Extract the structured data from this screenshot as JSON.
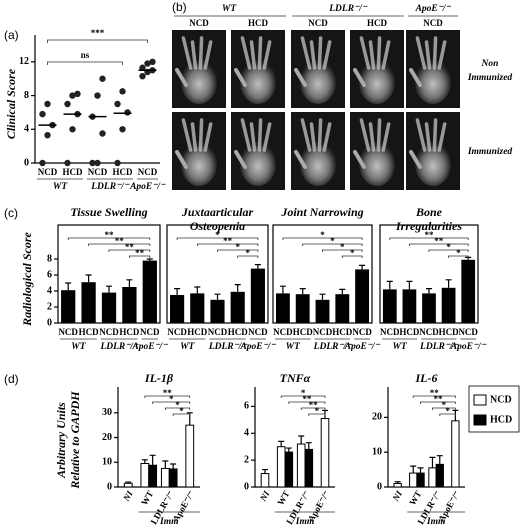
{
  "panel_b": {
    "label": "(b)",
    "genotypes": [
      "WT",
      "LDLR⁻/⁻",
      "ApoE⁻/⁻"
    ],
    "diets": [
      "NCD",
      "HCD",
      "NCD",
      "HCD",
      "NCD"
    ],
    "rows": [
      [
        "Non",
        "Immunized"
      ],
      [
        "Immunized"
      ]
    ]
  },
  "chart_data": [
    {
      "type": "scatter",
      "panel": "(a)",
      "ylabel": "Clinical Score",
      "categories": [
        "NCD",
        "HCD",
        "NCD",
        "HCD",
        "NCD"
      ],
      "groups": [
        "WT",
        "LDLR⁻/⁻",
        "ApoE⁻/⁻"
      ],
      "values": [
        [
          0,
          3.3,
          4.5,
          5.8,
          7
        ],
        [
          0,
          4,
          5.8,
          7,
          8,
          8.2
        ],
        [
          0,
          0,
          3.5,
          5.5,
          8,
          10
        ],
        [
          0,
          4,
          6,
          7,
          8.5
        ],
        [
          10.3,
          10.8,
          11,
          11.3,
          11.8,
          12
        ]
      ],
      "means": [
        4.5,
        5.8,
        5.5,
        5.9,
        11
      ],
      "color": "#222",
      "ylim": [
        0,
        14
      ],
      "yticks": [
        0,
        4,
        8,
        12
      ],
      "annotations": [
        "***",
        "ns"
      ]
    },
    {
      "type": "bar",
      "panel": "(c)",
      "title": [
        "Tissue Swelling"
      ],
      "ylabel": "Radiological Score",
      "categories": [
        "NCD",
        "HCD",
        "NCD",
        "HCD",
        "NCD"
      ],
      "groups": [
        "WT",
        "LDLR⁻/⁻",
        "ApoE⁻/⁻"
      ],
      "values": [
        4.1,
        5.1,
        3.8,
        4.5,
        7.8
      ],
      "errors": [
        0.9,
        0.9,
        0.8,
        0.9,
        0.2
      ],
      "color": "#000",
      "ylim": [
        0,
        11
      ],
      "yticks": [
        0,
        2,
        4,
        6,
        8
      ],
      "annotations": [
        "**",
        "**",
        "**",
        "**"
      ]
    },
    {
      "type": "bar",
      "title": [
        "Juxtaarticular",
        "Osteopenia"
      ],
      "categories": [
        "NCD",
        "HCD",
        "NCD",
        "HCD",
        "NCD"
      ],
      "groups": [
        "WT",
        "LDLR⁻/⁻",
        "ApoE⁻/⁻"
      ],
      "values": [
        3.5,
        3.7,
        2.9,
        3.9,
        6.8
      ],
      "errors": [
        0.8,
        0.8,
        0.7,
        0.9,
        0.5
      ],
      "color": "#000",
      "ylim": [
        0,
        11
      ],
      "annotations": [
        "*",
        "**",
        "*",
        "*"
      ]
    },
    {
      "type": "bar",
      "title": [
        "Joint Narrowing"
      ],
      "categories": [
        "NCD",
        "HCD",
        "NCD",
        "HCD",
        "NCD"
      ],
      "groups": [
        "WT",
        "LDLR⁻/⁻",
        "ApoE⁻/⁻"
      ],
      "values": [
        3.7,
        3.6,
        2.9,
        3.6,
        6.7
      ],
      "errors": [
        0.9,
        0.7,
        0.7,
        0.6,
        0.5
      ],
      "color": "#000",
      "ylim": [
        0,
        11
      ],
      "annotations": [
        "*",
        "*",
        "*",
        "*"
      ]
    },
    {
      "type": "bar",
      "title": [
        "Bone",
        "Irregularities"
      ],
      "categories": [
        "NCD",
        "HCD",
        "NCD",
        "HCD",
        "NCD"
      ],
      "groups": [
        "WT",
        "LDLR⁻/⁻",
        "ApoE⁻/⁻"
      ],
      "values": [
        4.2,
        4.2,
        3.7,
        4.4,
        7.9
      ],
      "errors": [
        1,
        1,
        0.6,
        1,
        0.3
      ],
      "color": "#000",
      "ylim": [
        0,
        11
      ],
      "annotations": [
        "**",
        "**",
        "*",
        "*"
      ]
    },
    {
      "type": "grouped_bar",
      "panel": "(d)",
      "title": [
        "IL-1β"
      ],
      "ylabel": [
        "Arbitrary Units",
        "Relative to GAPDH"
      ],
      "categories": [
        "NI",
        "WT",
        "LDLR⁻/⁻",
        "ApoE⁻/⁻"
      ],
      "xlabel": "Imm",
      "series": [
        {
          "color": "#ffffff",
          "values": [
            1.5,
            9.5,
            7.5,
            25
          ],
          "errors": [
            0.5,
            1.5,
            3,
            5
          ]
        },
        {
          "color": "#000000",
          "values": [
            null,
            8.8,
            7.3,
            null
          ],
          "errors": [
            null,
            4,
            2,
            null
          ]
        }
      ],
      "ylim": [
        0,
        38
      ],
      "yticks": [
        0,
        10,
        20,
        30
      ],
      "annotations": [
        "**",
        "*",
        "*",
        "*"
      ]
    },
    {
      "type": "grouped_bar",
      "title": [
        "TNFα"
      ],
      "categories": [
        "NI",
        "WT",
        "LDLR⁻/⁻",
        "ApoE⁻/⁻"
      ],
      "xlabel": "Imm",
      "series": [
        {
          "color": "#ffffff",
          "values": [
            1.0,
            3.0,
            3.2,
            5.1
          ],
          "errors": [
            0.3,
            0.4,
            0.6,
            0.6
          ]
        },
        {
          "color": "#000000",
          "values": [
            null,
            2.6,
            2.8,
            null
          ],
          "errors": [
            null,
            0.3,
            0.5,
            null
          ]
        }
      ],
      "ylim": [
        0,
        7
      ],
      "yticks": [
        0,
        2,
        4,
        6
      ],
      "annotations": [
        "*",
        "**",
        "**",
        "*"
      ]
    },
    {
      "type": "grouped_bar",
      "title": [
        "IL-6"
      ],
      "categories": [
        "NI",
        "WT",
        "LDLR⁻/⁻",
        "ApoE⁻/⁻"
      ],
      "xlabel": "Imm",
      "series": [
        {
          "name": "NCD",
          "color": "#ffffff",
          "values": [
            1,
            4,
            5.5,
            19
          ],
          "errors": [
            0.5,
            2,
            3,
            3
          ]
        },
        {
          "name": "HCD",
          "color": "#000000",
          "values": [
            null,
            4,
            6.5,
            null
          ],
          "errors": [
            null,
            1.5,
            2.5,
            null
          ]
        }
      ],
      "ylim": [
        0,
        27
      ],
      "yticks": [
        0,
        10,
        20
      ],
      "annotations": [
        "**",
        "**",
        "*",
        "*"
      ]
    }
  ]
}
